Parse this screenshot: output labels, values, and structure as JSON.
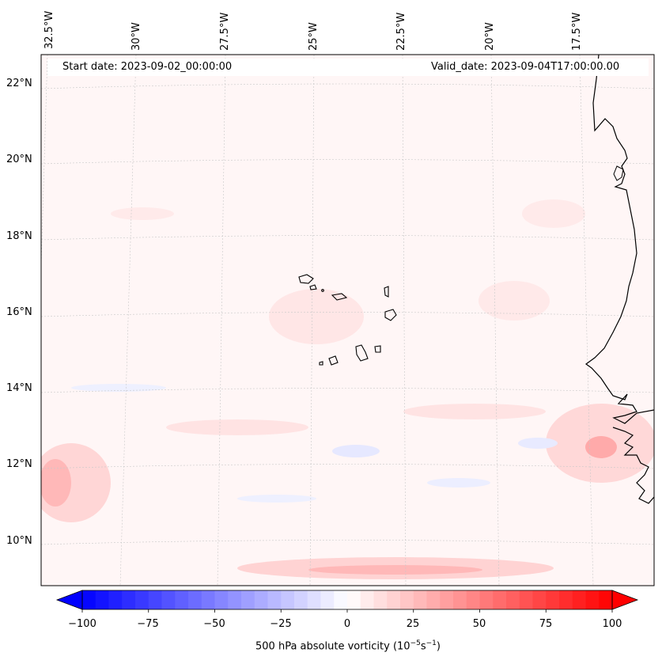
{
  "map": {
    "start_label": "Start date: 2023-09-02_00:00:00",
    "valid_label": "Valid_date: 2023-09-04T17:00:00.00",
    "lon_labels": [
      "32.5°W",
      "30°W",
      "27.5°W",
      "25°W",
      "22.5°W",
      "20°W",
      "17.5°W"
    ],
    "lat_labels": [
      "22°N",
      "20°N",
      "18°N",
      "16°N",
      "14°N",
      "12°N",
      "10°N"
    ],
    "places": [
      "Cabo Verde",
      "West African coast"
    ],
    "field_colors": {
      "neg_max": "#0000ff",
      "zero": "#ffffff",
      "pos_max": "#ff0000",
      "background_tint": "#fff5f5"
    }
  },
  "colorbar": {
    "ticks": [
      "−100",
      "−75",
      "−50",
      "−25",
      "0",
      "25",
      "50",
      "75",
      "100"
    ],
    "title_main": "500 hPa absolute vorticity (10",
    "title_exp1": "−5",
    "title_mid": "s",
    "title_exp2": "−1",
    "title_end": ")",
    "min": -100,
    "max": 100,
    "levels": 40
  }
}
